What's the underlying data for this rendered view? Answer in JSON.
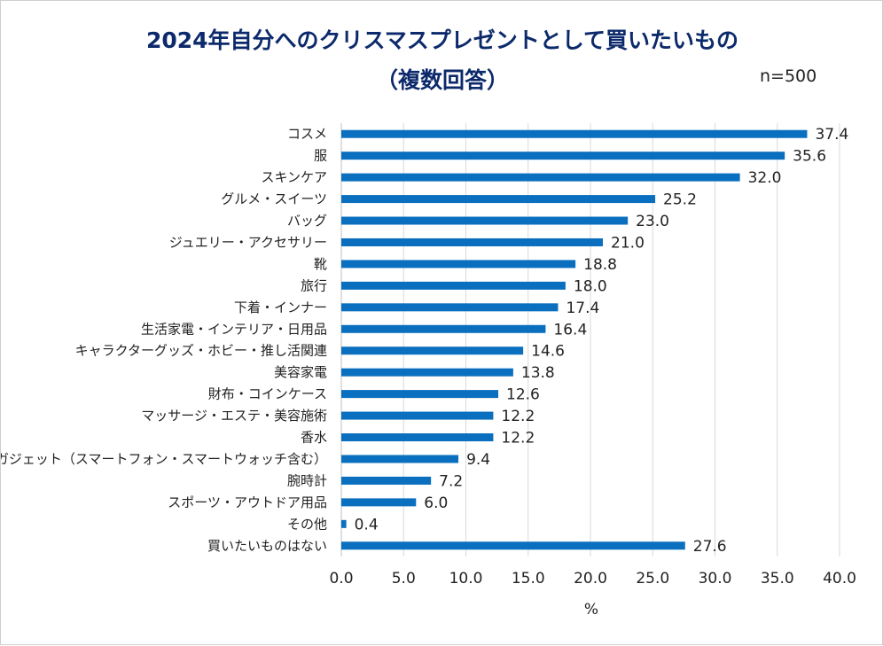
{
  "header": {
    "title_line1": "2024年自分へのクリスマスプレゼントとして買いたいもの",
    "title_line2": "（複数回答）",
    "sample_size": "n=500"
  },
  "chart_data": {
    "type": "bar",
    "orientation": "horizontal",
    "title": "2024年自分へのクリスマスプレゼントとして買いたいもの（複数回答）",
    "xlabel": "%",
    "ylabel": "",
    "xlim": [
      0,
      40
    ],
    "x_ticks": [
      "0.0",
      "5.0",
      "10.0",
      "15.0",
      "20.0",
      "25.0",
      "30.0",
      "35.0",
      "40.0"
    ],
    "grid": true,
    "bar_color": "#0a6fbf",
    "categories": [
      "コスメ",
      "服",
      "スキンケア",
      "グルメ・スイーツ",
      "バッグ",
      "ジュエリー・アクセサリー",
      "靴",
      "旅行",
      "下着・インナー",
      "生活家電・インテリア・日用品",
      "キャラクターグッズ・ホビー・推し活関連",
      "美容家電",
      "財布・コインケース",
      "マッサージ・エステ・美容施術",
      "香水",
      "ガジェット（スマートフォン・スマートウォッチ含む）",
      "腕時計",
      "スポーツ・アウトドア用品",
      "その他",
      "買いたいものはない"
    ],
    "values": [
      37.4,
      35.6,
      32.0,
      25.2,
      23.0,
      21.0,
      18.8,
      18.0,
      17.4,
      16.4,
      14.6,
      13.8,
      12.6,
      12.2,
      12.2,
      9.4,
      7.2,
      6.0,
      0.4,
      27.6
    ],
    "value_labels": [
      "37.4",
      "35.6",
      "32.0",
      "25.2",
      "23.0",
      "21.0",
      "18.8",
      "18.0",
      "17.4",
      "16.4",
      "14.6",
      "13.8",
      "12.6",
      "12.2",
      "12.2",
      "9.4",
      "7.2",
      "6.0",
      "0.4",
      "27.6"
    ]
  }
}
